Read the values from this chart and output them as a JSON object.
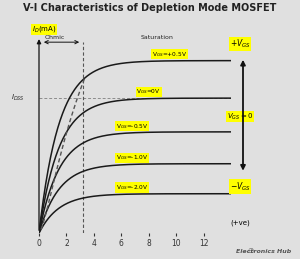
{
  "title": "V-I Characteristics of Depletion Mode MOSFET",
  "bg_color": "#e0e0e0",
  "xlabel": "",
  "xlim": [
    0,
    14
  ],
  "ylim": [
    0,
    1.05
  ],
  "xticks": [
    0,
    2,
    4,
    6,
    8,
    10,
    12
  ],
  "curve_color": "#1a1a1a",
  "dashed_color": "#555555",
  "label_bg": "#ffff00",
  "curves": [
    {
      "vgs": "V$_{GS}$=+0.5V",
      "sat": 0.92
    },
    {
      "vgs": "V$_{GS}$=0V",
      "sat": 0.72
    },
    {
      "vgs": "V$_{GS}$=-0.5V",
      "sat": 0.54
    },
    {
      "vgs": "V$_{GS}$=-1.0V",
      "sat": 0.37
    },
    {
      "vgs": "V$_{GS}$=-2.0V",
      "sat": 0.21
    }
  ],
  "idss_level": 0.72,
  "vp": 3.2,
  "ohmic_label": "Ohmic",
  "sat_label": "Saturation",
  "idss_label": "$I_{DSS}$",
  "font_color": "#222222",
  "arrow_color": "#111111",
  "logo_text": "Electronics Hub"
}
